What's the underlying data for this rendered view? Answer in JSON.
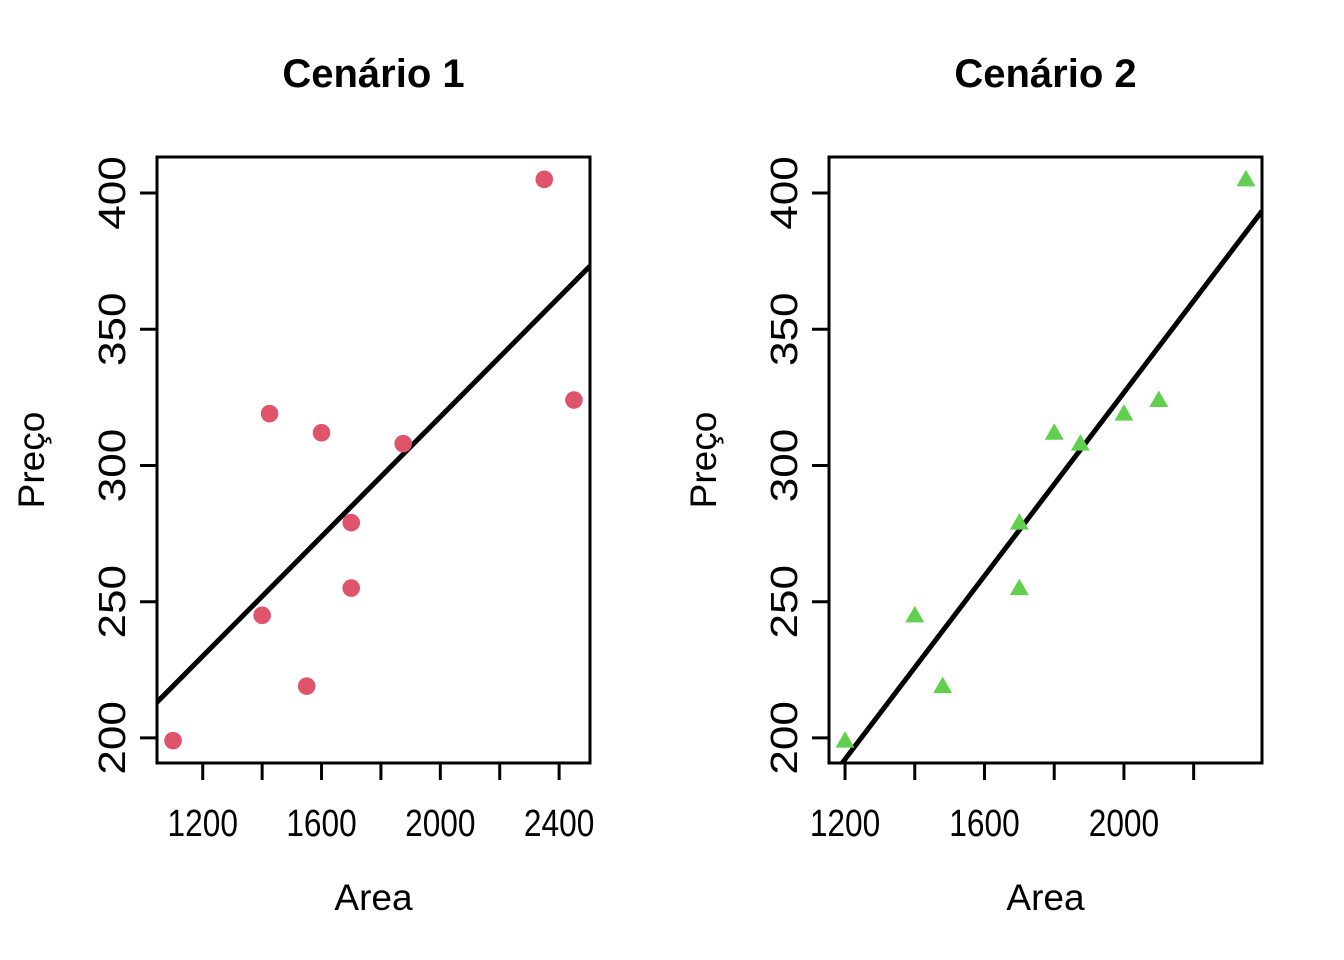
{
  "figure": {
    "background": "#ffffff",
    "text_color": "#000000",
    "axis_color": "#000000"
  },
  "chart_data": [
    {
      "type": "scatter",
      "title": "Cenário 1",
      "xlabel": "Area",
      "ylabel": "Preço",
      "marker": "circle",
      "marker_color": "#DF536B",
      "line_color": "#000000",
      "points": [
        [
          1100,
          199
        ],
        [
          1400,
          245
        ],
        [
          1425,
          319
        ],
        [
          1550,
          219
        ],
        [
          1600,
          312
        ],
        [
          1700,
          255
        ],
        [
          1700,
          279
        ],
        [
          1875,
          308
        ],
        [
          2350,
          405
        ],
        [
          2450,
          324
        ]
      ],
      "regression_line": {
        "slope": 0.1098,
        "intercept": 98.25
      },
      "x_ticks": [
        1200,
        1400,
        1600,
        1800,
        2000,
        2200,
        2400
      ],
      "x_tick_labels": [
        1200,
        1600,
        2000,
        2400
      ],
      "y_ticks": [
        200,
        250,
        300,
        350,
        400
      ],
      "y_tick_labels": [
        200,
        250,
        300,
        350,
        400
      ],
      "xlim": [
        1046,
        2504
      ],
      "ylim": [
        190.8,
        413.2
      ],
      "grid": false,
      "legend": null
    },
    {
      "type": "scatter",
      "title": "Cenário 2",
      "xlabel": "Area",
      "ylabel": "Preço",
      "marker": "triangle",
      "marker_color": "#61D04F",
      "line_color": "#000000",
      "points": [
        [
          1200,
          199
        ],
        [
          1400,
          245
        ],
        [
          1480,
          219
        ],
        [
          1700,
          255
        ],
        [
          1700,
          279
        ],
        [
          1800,
          312
        ],
        [
          1875,
          308
        ],
        [
          2000,
          319
        ],
        [
          2100,
          324
        ],
        [
          2350,
          405
        ]
      ],
      "regression_line": {
        "slope": 0.1682,
        "intercept": -9.65
      },
      "x_ticks": [
        1200,
        1400,
        1600,
        1800,
        2000,
        2200
      ],
      "x_tick_labels": [
        1200,
        1600,
        2000
      ],
      "y_ticks": [
        200,
        250,
        300,
        350,
        400
      ],
      "y_tick_labels": [
        200,
        250,
        300,
        350,
        400
      ],
      "xlim": [
        1154,
        2396
      ],
      "ylim": [
        190.8,
        413.2
      ],
      "grid": false,
      "legend": null
    }
  ]
}
